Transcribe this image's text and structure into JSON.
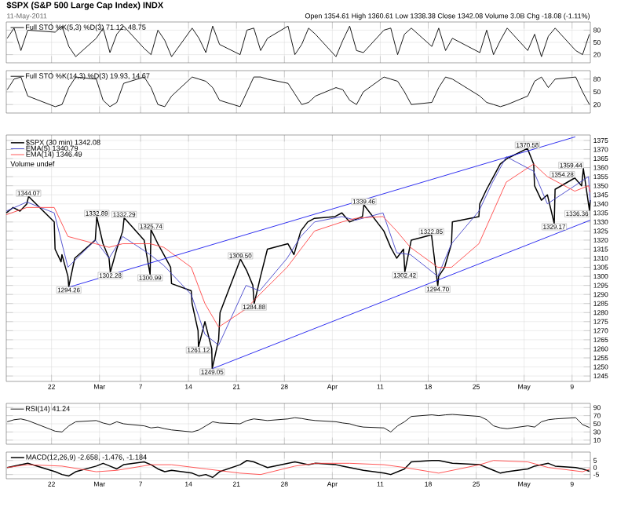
{
  "chart_data": [
    {
      "type": "line",
      "title": "$SPX (S&P 500 Large Cap Index) INDX",
      "subtitle": "11-May-2011",
      "annotations": [
        "Open 1354.61  High 1360.61  Low 1338.38  Close 1342.08  Volume 3.0B  Chg -18.08 (-1.11%)"
      ],
      "legend": "top left",
      "grid": true,
      "tick_labels": "y",
      "marker": "none",
      "x": [
        "2011-02-15T12:45",
        "2011-02-16T12:45",
        "2011-02-17T12:45",
        "2011-02-18T12:45",
        "2011-02-22T12:45",
        "2011-02-23T12:45",
        "2011-02-24T12:45",
        "2011-02-25T12:45",
        "2011-02-28T12:45",
        "2011-03-01T12:45",
        "2011-03-02T12:45",
        "2011-03-03T12:45",
        "2011-03-04T12:45",
        "2011-03-07T12:45",
        "2011-03-08T12:45",
        "2011-03-09T12:45",
        "2011-03-10T12:45",
        "2011-03-11T12:45",
        "2011-03-14T12:45",
        "2011-03-15T12:45",
        "2011-03-16T12:45",
        "2011-03-17T12:45",
        "2011-03-18T12:45",
        "2011-03-21T12:45",
        "2011-03-22T12:45",
        "2011-03-23T12:45",
        "2011-03-24T12:45",
        "2011-03-25T12:45",
        "2011-03-28T12:45",
        "2011-03-29T12:45",
        "2011-03-30T12:45",
        "2011-03-31T12:45",
        "2011-04-01T12:45",
        "2011-04-04T12:45",
        "2011-04-05T12:45",
        "2011-04-06T12:45",
        "2011-04-07T12:45",
        "2011-04-08T12:45",
        "2011-04-11T12:45",
        "2011-04-12T12:45",
        "2011-04-13T12:45",
        "2011-04-14T12:45",
        "2011-04-15T12:45",
        "2011-04-18T12:45",
        "2011-04-19T12:45",
        "2011-04-20T12:45",
        "2011-04-21T12:45",
        "2011-04-25T12:45",
        "2011-04-26T12:45",
        "2011-04-27T12:45",
        "2011-04-28T12:45",
        "2011-04-29T12:45",
        "2011-05-02T12:45",
        "2011-05-03T12:45",
        "2011-05-04T12:45",
        "2011-05-05T12:45",
        "2011-05-06T12:45",
        "2011-05-09T12:45",
        "2011-05-10T12:45",
        "2011-05-11T12:45"
      ],
      "series": [
        {
          "name": "Full STO %K(5,3) %D(3) 71.12, 48.75",
          "color": "#000000",
          "values": [
            60,
            85,
            30,
            80,
            75,
            90,
            40,
            15,
            60,
            85,
            25,
            70,
            90,
            35,
            20,
            80,
            55,
            15,
            85,
            60,
            25,
            90,
            45,
            20,
            80,
            85,
            30,
            60,
            90,
            20,
            45,
            85,
            70,
            15,
            55,
            90,
            30,
            25,
            80,
            85,
            20,
            70,
            85,
            40,
            85,
            30,
            60,
            25,
            80,
            20,
            55,
            85,
            30,
            70,
            15,
            65,
            85,
            30,
            20,
            70
          ]
        }
      ],
      "xlim": [
        "2011-02-15T09:30",
        "2011-05-11T16:00"
      ],
      "ylim": [
        0,
        100
      ],
      "yticks": [
        20,
        50,
        80
      ],
      "xticks": [
        {
          "value": "2011-02-22",
          "label": null
        },
        {
          "value": "2011-03-01",
          "label": null
        },
        {
          "value": "2011-03-07",
          "label": null
        },
        {
          "value": "2011-03-14",
          "label": null
        },
        {
          "value": "2011-03-21",
          "label": null
        },
        {
          "value": "2011-03-28",
          "label": null
        },
        {
          "value": "2011-04-04",
          "label": null
        },
        {
          "value": "2011-04-11",
          "label": null
        },
        {
          "value": "2011-04-18",
          "label": null
        },
        {
          "value": "2011-04-25",
          "label": null
        },
        {
          "value": "2011-05-02",
          "label": null
        },
        {
          "value": "2011-05-09",
          "label": null
        }
      ]
    },
    {
      "type": "line",
      "legend": "top left",
      "grid": true,
      "tick_labels": "y",
      "marker": "none",
      "x": [
        "2011-02-15T12:45",
        "2011-02-16T12:45",
        "2011-02-17T12:45",
        "2011-02-18T12:45",
        "2011-02-22T12:45",
        "2011-02-23T12:45",
        "2011-02-24T12:45",
        "2011-02-25T12:45",
        "2011-02-28T12:45",
        "2011-03-01T12:45",
        "2011-03-02T12:45",
        "2011-03-03T12:45",
        "2011-03-04T12:45",
        "2011-03-07T12:45",
        "2011-03-08T12:45",
        "2011-03-09T12:45",
        "2011-03-10T12:45",
        "2011-03-11T12:45",
        "2011-03-14T12:45",
        "2011-03-15T12:45",
        "2011-03-16T12:45",
        "2011-03-17T12:45",
        "2011-03-18T12:45",
        "2011-03-21T12:45",
        "2011-03-22T12:45",
        "2011-03-23T12:45",
        "2011-03-24T12:45",
        "2011-03-25T12:45",
        "2011-03-28T12:45",
        "2011-03-29T12:45",
        "2011-03-30T12:45",
        "2011-03-31T12:45",
        "2011-04-01T12:45",
        "2011-04-04T12:45",
        "2011-04-05T12:45",
        "2011-04-06T12:45",
        "2011-04-07T12:45",
        "2011-04-08T12:45",
        "2011-04-11T12:45",
        "2011-04-12T12:45",
        "2011-04-13T12:45",
        "2011-04-14T12:45",
        "2011-04-15T12:45",
        "2011-04-18T12:45",
        "2011-04-19T12:45",
        "2011-04-20T12:45",
        "2011-04-21T12:45",
        "2011-04-25T12:45",
        "2011-04-26T12:45",
        "2011-04-27T12:45",
        "2011-04-28T12:45",
        "2011-04-29T12:45",
        "2011-05-02T12:45",
        "2011-05-03T12:45",
        "2011-05-04T12:45",
        "2011-05-05T12:45",
        "2011-05-06T12:45",
        "2011-05-09T12:45",
        "2011-05-10T12:45",
        "2011-05-11T12:45"
      ],
      "series": [
        {
          "name": "Full STO %K(14,3) %D(3) 19.93, 14.67",
          "color": "#000000",
          "values": [
            55,
            80,
            85,
            40,
            15,
            20,
            60,
            85,
            80,
            30,
            15,
            25,
            70,
            85,
            60,
            20,
            15,
            40,
            85,
            80,
            75,
            60,
            30,
            15,
            50,
            85,
            85,
            80,
            70,
            45,
            20,
            25,
            40,
            60,
            55,
            30,
            20,
            50,
            85,
            80,
            75,
            50,
            20,
            25,
            60,
            85,
            80,
            40,
            25,
            20,
            15,
            20,
            40,
            75,
            85,
            60,
            80,
            85,
            50,
            20
          ]
        }
      ],
      "xlim": [
        "2011-02-15T09:30",
        "2011-05-11T16:00"
      ],
      "ylim": [
        0,
        100
      ],
      "yticks": [
        20,
        50,
        80
      ],
      "xticks": [
        {
          "value": "2011-02-22",
          "label": null
        },
        {
          "value": "2011-03-01",
          "label": null
        },
        {
          "value": "2011-03-07",
          "label": null
        },
        {
          "value": "2011-03-14",
          "label": null
        },
        {
          "value": "2011-03-21",
          "label": null
        },
        {
          "value": "2011-03-28",
          "label": null
        },
        {
          "value": "2011-04-04",
          "label": null
        },
        {
          "value": "2011-04-11",
          "label": null
        },
        {
          "value": "2011-04-18",
          "label": null
        },
        {
          "value": "2011-04-25",
          "label": null
        },
        {
          "value": "2011-05-02",
          "label": null
        },
        {
          "value": "2011-05-09",
          "label": null
        }
      ]
    },
    {
      "type": "line",
      "legend": "top left",
      "grid": true,
      "marker": "none",
      "annotations": [
        "Volume undef",
        {
          "text": "1344.07",
          "x": "2011-02-18T15:30",
          "y": 1344.07
        },
        {
          "text": "1294.26",
          "x": "2011-02-24T12:30",
          "y": 1294.26
        },
        {
          "text": "1332.89",
          "x": "2011-02-28T14:30",
          "y": 1332.89
        },
        {
          "text": "1302.28",
          "x": "2011-03-02T14:00",
          "y": 1302.28
        },
        {
          "text": "1332.29",
          "x": "2011-03-04T14:30",
          "y": 1332.29
        },
        {
          "text": "1300.99",
          "x": "2011-03-08T09:30",
          "y": 1300.99
        },
        {
          "text": "1325.74",
          "x": "2011-03-08T12:30",
          "y": 1325.74
        },
        {
          "text": "1261.12",
          "x": "2011-03-15T11:00",
          "y": 1261.12
        },
        {
          "text": "1249.05",
          "x": "2011-03-17T11:00",
          "y": 1249.05
        },
        {
          "text": "1309.50",
          "x": "2011-03-21T14:00",
          "y": 1309.5
        },
        {
          "text": "1284.88",
          "x": "2011-03-23T14:00",
          "y": 1284.88
        },
        {
          "text": "1339.46",
          "x": "2011-04-08T14:30",
          "y": 1339.46
        },
        {
          "text": "1302.42",
          "x": "2011-04-14T14:00",
          "y": 1302.42
        },
        {
          "text": "1322.85",
          "x": "2011-04-18T11:30",
          "y": 1322.85
        },
        {
          "text": "1294.70",
          "x": "2011-04-19T09:30",
          "y": 1294.7
        },
        {
          "text": "1370.58",
          "x": "2011-05-02T11:30",
          "y": 1370.58
        },
        {
          "text": "1329.17",
          "x": "2011-05-06T09:30",
          "y": 1329.17
        },
        {
          "text": "1354.28",
          "x": "2011-05-09T09:30",
          "y": 1354.28
        },
        {
          "text": "1359.44",
          "x": "2011-05-10T15:30",
          "y": 1359.44
        },
        {
          "text": "1336.36",
          "x": "2011-05-11T13:00",
          "y": 1336.36
        }
      ],
      "series": [
        {
          "name": "$SPX (30 min) 1342.08",
          "color": "#000000",
          "x": [
            "2011-02-15T09:30",
            "2011-02-16T09:30",
            "2011-02-17T09:30",
            "2011-02-18T09:30",
            "2011-02-18T14:00",
            "2011-02-18T15:30",
            "2011-02-22T09:30",
            "2011-02-22T12:30",
            "2011-02-23T09:30",
            "2011-02-23T12:30",
            "2011-02-24T09:30",
            "2011-02-24T12:30",
            "2011-02-25T09:30",
            "2011-02-28T09:30",
            "2011-02-28T14:30",
            "2011-03-01T12:30",
            "2011-03-02T09:30",
            "2011-03-02T14:00",
            "2011-03-03T12:30",
            "2011-03-04T09:30",
            "2011-03-04T14:30",
            "2011-03-07T12:30",
            "2011-03-08T09:30",
            "2011-03-08T12:30",
            "2011-03-09T12:30",
            "2011-03-10T09:30",
            "2011-03-11T09:30",
            "2011-03-11T12:30",
            "2011-03-14T09:30",
            "2011-03-14T12:30",
            "2011-03-15T09:30",
            "2011-03-15T11:00",
            "2011-03-16T09:30",
            "2011-03-17T09:30",
            "2011-03-17T11:00",
            "2011-03-18T09:30",
            "2011-03-18T14:30",
            "2011-03-21T14:00",
            "2011-03-22T12:30",
            "2011-03-23T09:30",
            "2011-03-23T14:00",
            "2011-03-24T12:30",
            "2011-03-25T12:30",
            "2011-03-28T12:30",
            "2011-03-29T09:30",
            "2011-03-30T09:30",
            "2011-03-31T09:30",
            "2011-04-01T09:30",
            "2011-04-04T09:30",
            "2011-04-05T09:30",
            "2011-04-06T12:30",
            "2011-04-08T09:30",
            "2011-04-08T14:30",
            "2011-04-11T12:30",
            "2011-04-12T12:30",
            "2011-04-13T09:30",
            "2011-04-14T09:30",
            "2011-04-14T14:00",
            "2011-04-15T12:30",
            "2011-04-18T11:30",
            "2011-04-19T09:30",
            "2011-04-19T12:30",
            "2011-04-20T09:30",
            "2011-04-21T09:30",
            "2011-04-21T12:30",
            "2011-04-25T09:30",
            "2011-04-25T12:30",
            "2011-04-26T12:30",
            "2011-04-27T12:30",
            "2011-04-28T12:30",
            "2011-04-29T12:30",
            "2011-05-02T11:30",
            "2011-05-03T09:30",
            "2011-05-03T12:30",
            "2011-05-04T12:30",
            "2011-05-05T09:30",
            "2011-05-06T09:30",
            "2011-05-06T12:30",
            "2011-05-09T09:30",
            "2011-05-10T09:30",
            "2011-05-10T14:00",
            "2011-05-10T15:30",
            "2011-05-11T13:00",
            "2011-05-11T15:30"
          ],
          "values": [
            1335,
            1338,
            1336,
            1340,
            1343,
            1344.07,
            1330,
            1315,
            1308,
            1312,
            1300,
            1294.26,
            1310,
            1320,
            1332.89,
            1318,
            1310,
            1302.28,
            1315,
            1325,
            1332.29,
            1320,
            1300.99,
            1325.74,
            1318,
            1312,
            1305,
            1296,
            1292,
            1285,
            1270,
            1261.12,
            1275,
            1260,
            1249.05,
            1265,
            1280,
            1309.5,
            1303,
            1295,
            1284.88,
            1300,
            1315,
            1318,
            1312,
            1325,
            1330,
            1332,
            1333,
            1335,
            1330,
            1333,
            1339.46,
            1325,
            1316,
            1310,
            1315,
            1302.42,
            1320,
            1322.85,
            1294.7,
            1300,
            1305,
            1318,
            1330,
            1333,
            1340,
            1348,
            1355,
            1362,
            1365,
            1370.58,
            1362,
            1350,
            1342,
            1345,
            1329.17,
            1348,
            1354.28,
            1350,
            1357,
            1359.44,
            1336.36,
            1342.08
          ]
        },
        {
          "name": "EMA(5) 1340.79",
          "color": "#4444cc",
          "x": [
            "2011-02-15T09:30",
            "2011-02-18T09:30",
            "2011-02-22T09:30",
            "2011-02-24T09:30",
            "2011-02-28T09:30",
            "2011-03-02T09:30",
            "2011-03-04T09:30",
            "2011-03-08T09:30",
            "2011-03-10T09:30",
            "2011-03-14T09:30",
            "2011-03-16T09:30",
            "2011-03-18T09:30",
            "2011-03-22T09:30",
            "2011-03-24T09:30",
            "2011-03-28T09:30",
            "2011-03-30T09:30",
            "2011-04-01T09:30",
            "2011-04-05T09:30",
            "2011-04-07T09:30",
            "2011-04-11T09:30",
            "2011-04-13T09:30",
            "2011-04-15T09:30",
            "2011-04-19T09:30",
            "2011-04-21T09:30",
            "2011-04-25T09:30",
            "2011-04-27T09:30",
            "2011-04-29T09:30",
            "2011-05-03T09:30",
            "2011-05-05T09:30",
            "2011-05-09T09:30",
            "2011-05-11T09:30",
            "2011-05-11T15:30"
          ],
          "values": [
            1336,
            1341,
            1335,
            1305,
            1320,
            1310,
            1322,
            1312,
            1306,
            1290,
            1268,
            1262,
            1295,
            1292,
            1310,
            1322,
            1330,
            1333,
            1331,
            1335,
            1313,
            1312,
            1300,
            1318,
            1336,
            1352,
            1366,
            1358,
            1340,
            1350,
            1355,
            1340.79
          ]
        },
        {
          "name": "EMA(14) 1346.49",
          "color": "#ff4444",
          "x": [
            "2011-02-15T09:30",
            "2011-02-18T09:30",
            "2011-02-22T09:30",
            "2011-02-24T09:30",
            "2011-02-28T09:30",
            "2011-03-02T09:30",
            "2011-03-04T09:30",
            "2011-03-08T09:30",
            "2011-03-10T09:30",
            "2011-03-14T09:30",
            "2011-03-16T09:30",
            "2011-03-18T09:30",
            "2011-03-22T09:30",
            "2011-03-24T09:30",
            "2011-03-28T09:30",
            "2011-03-30T09:30",
            "2011-04-01T09:30",
            "2011-04-05T09:30",
            "2011-04-07T09:30",
            "2011-04-11T09:30",
            "2011-04-13T09:30",
            "2011-04-15T09:30",
            "2011-04-19T09:30",
            "2011-04-21T09:30",
            "2011-04-25T09:30",
            "2011-04-27T09:30",
            "2011-04-29T09:30",
            "2011-05-03T09:30",
            "2011-05-05T09:30",
            "2011-05-09T09:30",
            "2011-05-11T09:30",
            "2011-05-11T15:30"
          ],
          "values": [
            1334,
            1338,
            1338,
            1322,
            1318,
            1316,
            1318,
            1318,
            1316,
            1305,
            1285,
            1272,
            1282,
            1290,
            1305,
            1315,
            1325,
            1330,
            1332,
            1333,
            1325,
            1316,
            1305,
            1305,
            1318,
            1335,
            1352,
            1362,
            1355,
            1347,
            1350,
            1346.49
          ]
        },
        {
          "color": "#1a1aee",
          "x": [
            "2011-02-24T12:30",
            "2011-05-09T11:30"
          ],
          "values": [
            1294,
            1377
          ]
        },
        {
          "color": "#1a1aee",
          "x": [
            "2011-03-17T11:00",
            "2011-05-11T16:00"
          ],
          "values": [
            1249,
            1331
          ]
        }
      ],
      "xlim": [
        "2011-02-15T09:30",
        "2011-05-11T16:00"
      ],
      "ylim": [
        1242,
        1378
      ],
      "yticks": [
        1245,
        1250,
        1255,
        1260,
        1265,
        1270,
        1275,
        1280,
        1285,
        1290,
        1295,
        1300,
        1305,
        1310,
        1315,
        1320,
        1325,
        1330,
        1335,
        1340,
        1345,
        1350,
        1355,
        1360,
        1365,
        1370,
        1375
      ],
      "xticks": [
        {
          "value": "2011-02-22",
          "label": "22"
        },
        {
          "value": "2011-03-01",
          "label": "Mar"
        },
        {
          "value": "2011-03-07",
          "label": "7"
        },
        {
          "value": "2011-03-14",
          "label": "14"
        },
        {
          "value": "2011-03-21",
          "label": "21"
        },
        {
          "value": "2011-03-28",
          "label": "28"
        },
        {
          "value": "2011-04-04",
          "label": "Apr"
        },
        {
          "value": "2011-04-11",
          "label": "11"
        },
        {
          "value": "2011-04-18",
          "label": "18"
        },
        {
          "value": "2011-04-25",
          "label": "25"
        },
        {
          "value": "2011-05-02",
          "label": "May"
        },
        {
          "value": "2011-05-09",
          "label": "9"
        }
      ]
    },
    {
      "type": "line",
      "legend": "top left",
      "grid": true,
      "tick_labels": "y",
      "marker": "none",
      "x": [
        "2011-02-15T12:45",
        "2011-02-16T12:45",
        "2011-02-17T12:45",
        "2011-02-18T12:45",
        "2011-02-22T12:45",
        "2011-02-23T12:45",
        "2011-02-24T12:45",
        "2011-02-25T12:45",
        "2011-02-28T12:45",
        "2011-03-01T12:45",
        "2011-03-02T12:45",
        "2011-03-03T12:45",
        "2011-03-04T12:45",
        "2011-03-07T12:45",
        "2011-03-08T12:45",
        "2011-03-09T12:45",
        "2011-03-10T12:45",
        "2011-03-11T12:45",
        "2011-03-14T12:45",
        "2011-03-15T12:45",
        "2011-03-16T12:45",
        "2011-03-17T12:45",
        "2011-03-18T12:45",
        "2011-03-21T12:45",
        "2011-03-22T12:45",
        "2011-03-23T12:45",
        "2011-03-24T12:45",
        "2011-03-25T12:45",
        "2011-03-28T12:45",
        "2011-03-29T12:45",
        "2011-03-30T12:45",
        "2011-03-31T12:45",
        "2011-04-01T12:45",
        "2011-04-04T12:45",
        "2011-04-05T12:45",
        "2011-04-06T12:45",
        "2011-04-07T12:45",
        "2011-04-08T12:45",
        "2011-04-11T12:45",
        "2011-04-12T12:45",
        "2011-04-13T12:45",
        "2011-04-14T12:45",
        "2011-04-15T12:45",
        "2011-04-18T12:45",
        "2011-04-19T12:45",
        "2011-04-20T12:45",
        "2011-04-21T12:45",
        "2011-04-25T12:45",
        "2011-04-26T12:45",
        "2011-04-27T12:45",
        "2011-04-28T12:45",
        "2011-04-29T12:45",
        "2011-05-02T12:45",
        "2011-05-03T12:45",
        "2011-05-04T12:45",
        "2011-05-05T12:45",
        "2011-05-06T12:45",
        "2011-05-09T12:45",
        "2011-05-10T12:45",
        "2011-05-11T12:45"
      ],
      "series": [
        {
          "name": "RSI(14) 41.24",
          "color": "#000000",
          "values": [
            55,
            60,
            62,
            58,
            32,
            30,
            45,
            55,
            58,
            52,
            48,
            55,
            50,
            45,
            40,
            42,
            38,
            35,
            30,
            35,
            45,
            55,
            52,
            50,
            58,
            62,
            60,
            58,
            62,
            65,
            63,
            60,
            58,
            55,
            52,
            50,
            45,
            42,
            40,
            30,
            45,
            55,
            68,
            72,
            70,
            72,
            73,
            68,
            60,
            45,
            40,
            38,
            45,
            42,
            55,
            60,
            62,
            65,
            48,
            41
          ]
        }
      ],
      "xlim": [
        "2011-02-15T09:30",
        "2011-05-11T16:00"
      ],
      "ylim": [
        0,
        100
      ],
      "yticks": [
        10,
        30,
        50,
        70,
        90
      ],
      "xticks": [
        {
          "value": "2011-02-22",
          "label": null
        },
        {
          "value": "2011-03-01",
          "label": null
        },
        {
          "value": "2011-03-07",
          "label": null
        },
        {
          "value": "2011-03-14",
          "label": null
        },
        {
          "value": "2011-03-21",
          "label": null
        },
        {
          "value": "2011-03-28",
          "label": null
        },
        {
          "value": "2011-04-04",
          "label": null
        },
        {
          "value": "2011-04-11",
          "label": null
        },
        {
          "value": "2011-04-18",
          "label": null
        },
        {
          "value": "2011-04-25",
          "label": null
        },
        {
          "value": "2011-05-02",
          "label": null
        },
        {
          "value": "2011-05-09",
          "label": null
        }
      ]
    },
    {
      "type": "line",
      "legend": "top left",
      "grid": true,
      "marker": "none",
      "series": [
        {
          "name": "MACD(12,26,9) -2.658, -1.476, -1.184",
          "color": "#000000",
          "x": [
            "2011-02-15T12:45",
            "2011-02-16T12:45",
            "2011-02-17T12:45",
            "2011-02-18T12:45",
            "2011-02-22T12:45",
            "2011-02-23T12:45",
            "2011-02-24T12:45",
            "2011-02-25T12:45",
            "2011-02-28T12:45",
            "2011-03-01T12:45",
            "2011-03-02T12:45",
            "2011-03-03T12:45",
            "2011-03-04T12:45",
            "2011-03-07T12:45",
            "2011-03-08T12:45",
            "2011-03-09T12:45",
            "2011-03-10T12:45",
            "2011-03-11T12:45",
            "2011-03-14T12:45",
            "2011-03-15T12:45",
            "2011-03-16T12:45",
            "2011-03-17T12:45",
            "2011-03-18T12:45",
            "2011-03-21T12:45",
            "2011-03-22T12:45",
            "2011-03-23T12:45",
            "2011-03-24T12:45",
            "2011-03-25T12:45",
            "2011-03-28T12:45",
            "2011-03-29T12:45",
            "2011-03-30T12:45",
            "2011-03-31T12:45",
            "2011-04-01T12:45",
            "2011-04-04T12:45",
            "2011-04-05T12:45",
            "2011-04-06T12:45",
            "2011-04-07T12:45",
            "2011-04-08T12:45",
            "2011-04-11T12:45",
            "2011-04-12T12:45",
            "2011-04-13T12:45",
            "2011-04-14T12:45",
            "2011-04-15T12:45",
            "2011-04-18T12:45",
            "2011-04-19T12:45",
            "2011-04-20T12:45",
            "2011-04-21T12:45",
            "2011-04-25T12:45",
            "2011-04-26T12:45",
            "2011-04-27T12:45",
            "2011-04-28T12:45",
            "2011-04-29T12:45",
            "2011-05-02T12:45",
            "2011-05-03T12:45",
            "2011-05-04T12:45",
            "2011-05-05T12:45",
            "2011-05-06T12:45",
            "2011-05-09T12:45",
            "2011-05-10T12:45",
            "2011-05-11T12:45"
          ],
          "values": [
            0,
            1,
            2,
            3,
            -3,
            -5,
            -6,
            -3,
            1,
            3,
            1,
            -1,
            2,
            4,
            2,
            -1,
            -3,
            -2,
            -4,
            -6,
            -5,
            -7,
            -3,
            2,
            5,
            4,
            2,
            0,
            3,
            4,
            3,
            2,
            3,
            2,
            1,
            0,
            -1,
            -2,
            -4,
            -5,
            -3,
            -1,
            4,
            5,
            5,
            4,
            3,
            2,
            0,
            -2,
            -4,
            -3,
            -1,
            1,
            2,
            3,
            1,
            0,
            -1,
            -2.7
          ]
        },
        {
          "color": "#ff4444",
          "x": [
            "2011-02-15T12:45",
            "2011-02-18T12:45",
            "2011-02-23T12:45",
            "2011-02-28T12:45",
            "2011-03-03T12:45",
            "2011-03-08T12:45",
            "2011-03-11T12:45",
            "2011-03-16T12:45",
            "2011-03-21T12:45",
            "2011-03-24T12:45",
            "2011-03-29T12:45",
            "2011-04-01T12:45",
            "2011-04-06T12:45",
            "2011-04-11T12:45",
            "2011-04-14T12:45",
            "2011-04-19T12:45",
            "2011-04-25T12:45",
            "2011-04-27T12:45",
            "2011-05-02T12:45",
            "2011-05-05T12:45",
            "2011-05-10T12:45",
            "2011-05-11T15:30"
          ],
          "values": [
            0,
            2,
            1,
            -3,
            -2,
            2,
            2,
            -1,
            -4,
            -5,
            1,
            3,
            3,
            2,
            0,
            -4,
            2,
            5,
            4,
            0,
            -3,
            -1
          ]
        }
      ],
      "xlim": [
        "2011-02-15T09:30",
        "2011-05-11T16:00"
      ],
      "ylim": [
        -8,
        11
      ],
      "yticks": [
        -5,
        0,
        5
      ],
      "xticks": [
        {
          "value": "2011-02-22",
          "label": "22"
        },
        {
          "value": "2011-03-01",
          "label": "Mar"
        },
        {
          "value": "2011-03-07",
          "label": "7"
        },
        {
          "value": "2011-03-14",
          "label": "14"
        },
        {
          "value": "2011-03-21",
          "label": "21"
        },
        {
          "value": "2011-03-28",
          "label": "28"
        },
        {
          "value": "2011-04-04",
          "label": "Apr"
        },
        {
          "value": "2011-04-11",
          "label": "11"
        },
        {
          "value": "2011-04-18",
          "label": "18"
        },
        {
          "value": "2011-04-25",
          "label": "25"
        },
        {
          "value": "2011-05-02",
          "label": "May"
        },
        {
          "value": "2011-05-09",
          "label": "9"
        }
      ]
    }
  ]
}
